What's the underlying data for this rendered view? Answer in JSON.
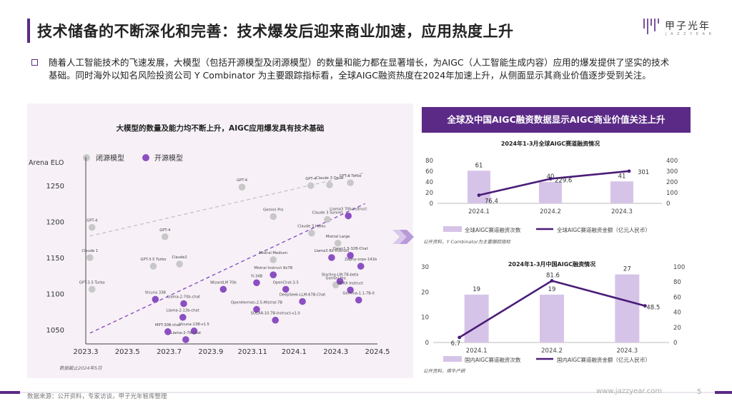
{
  "header": {
    "title": "技术储备的不断深化和完善：技术爆发后迎来商业加速，应用热度上升",
    "logo_text": "甲子光年",
    "logo_sub": "J A Z Z Y E A R"
  },
  "intro_text": "随着人工智能技术的飞速发展，大模型（包括开源模型及闭源模型）的数量和能力都在显著增长，为AIGC（人工智能生成内容）应用的爆发提供了坚实的技术基础。同时海外以知名风险投资公司 Y Combinator 为主要跟踪指标看，全球AIGC融资热度在2024年加速上升，从侧面显示其商业价值逐步受到关注。",
  "colors": {
    "accent": "#5b2a86",
    "open_model": "#8b4fc2",
    "closed_model": "#c8c8c8",
    "bar_fill": "#d6c4e8",
    "line": "#4a1c78"
  },
  "chart_data": [
    {
      "type": "scatter",
      "title": "大模型的数量及能力均不断上升，AIGC应用爆发具有技术基础",
      "ylabel": "Arena ELO",
      "x_ticks": [
        "2023.3",
        "2023.5",
        "2023.7",
        "2023.9",
        "2023.11",
        "2024.1",
        "2024.3",
        "2024.5"
      ],
      "y_ticks": [
        1050,
        1100,
        1150,
        1200,
        1250
      ],
      "xlim": [
        0,
        7
      ],
      "ylim": [
        1030,
        1270
      ],
      "legend": [
        "闭源模型",
        "开源模型"
      ],
      "note": "数据截止2024年5月",
      "series": [
        {
          "name": "闭源模型",
          "points": [
            {
              "label": "GPT-4",
              "x": 0.15,
              "y": 1192
            },
            {
              "label": "Claude 1",
              "x": 0.1,
              "y": 1150
            },
            {
              "label": "GPT-3.5 Turbo",
              "x": 0.15,
              "y": 1106
            },
            {
              "label": "GPT-4",
              "x": 1.9,
              "y": 1179
            },
            {
              "label": "Claude2",
              "x": 2.25,
              "y": 1141
            },
            {
              "label": "GPT-3.5 Turbo",
              "x": 1.62,
              "y": 1138
            },
            {
              "label": "GPT-4",
              "x": 3.75,
              "y": 1248
            },
            {
              "label": "GPT-4",
              "x": 5.4,
              "y": 1250
            },
            {
              "label": "Claude 3 Opus",
              "x": 5.85,
              "y": 1251
            },
            {
              "label": "GPT-4 Turbo",
              "x": 6.35,
              "y": 1254
            },
            {
              "label": "Gemini Pro",
              "x": 4.5,
              "y": 1207
            },
            {
              "label": "Claude 3 Sonnet",
              "x": 5.8,
              "y": 1203
            },
            {
              "label": "Claude 3 Haiku",
              "x": 5.42,
              "y": 1184
            },
            {
              "label": "Mistral Large",
              "x": 6.05,
              "y": 1170
            },
            {
              "label": "Mistral Medium",
              "x": 4.5,
              "y": 1147
            },
            {
              "label": "Gemini Pro",
              "x": 6.0,
              "y": 1112
            }
          ]
        },
        {
          "name": "开源模型",
          "points": [
            {
              "label": "Llama3 70b Instruct",
              "x": 6.3,
              "y": 1208
            },
            {
              "label": "Qwen1.5-32B-Chat",
              "x": 6.35,
              "y": 1153
            },
            {
              "label": "Llama3 8b Instruct",
              "x": 5.9,
              "y": 1150
            },
            {
              "label": "Zephy-orpo-141b",
              "x": 6.6,
              "y": 1138
            },
            {
              "label": "Mistral Instruct 8x7B",
              "x": 4.5,
              "y": 1126
            },
            {
              "label": "Starling-LM-7B-beta",
              "x": 6.1,
              "y": 1117
            },
            {
              "label": "DBRX Instruct",
              "x": 6.35,
              "y": 1105
            },
            {
              "label": "Gemma-1.1-7B-it",
              "x": 6.55,
              "y": 1091
            },
            {
              "label": "Yi-34B",
              "x": 4.1,
              "y": 1115
            },
            {
              "label": "OpenChat-3.5",
              "x": 4.8,
              "y": 1106
            },
            {
              "label": "DeepSeek-LLM-67B-Chat",
              "x": 5.2,
              "y": 1089
            },
            {
              "label": "WizardLM 70b",
              "x": 3.3,
              "y": 1106
            },
            {
              "label": "OpenHermes-2.5-Mistral-7B",
              "x": 4.1,
              "y": 1078
            },
            {
              "label": "SOLAR-10.7B-Instruct-v1.0",
              "x": 4.55,
              "y": 1063
            },
            {
              "label": "Vicuna 33B",
              "x": 1.67,
              "y": 1092
            },
            {
              "label": "Llama-2-70b-chat",
              "x": 2.35,
              "y": 1086
            },
            {
              "label": "Llama-2-13b-chat",
              "x": 2.33,
              "y": 1067
            },
            {
              "label": "Vicuna-13B-v1.5",
              "x": 2.6,
              "y": 1048
            },
            {
              "label": "MPT-30B-chat",
              "x": 1.97,
              "y": 1047
            },
            {
              "label": "Llama-2-7b-chat",
              "x": 2.4,
              "y": 1036
            }
          ]
        }
      ]
    },
    {
      "type": "bar+line",
      "title": "2024年1-3月全球AIGC赛道融资情况",
      "categories": [
        "2024.1",
        "2024.2",
        "2024.3"
      ],
      "bar_series": {
        "name": "全球AIGC赛道融资次数",
        "values": [
          61,
          40,
          41
        ]
      },
      "line_series": {
        "name": "全球AIGC赛道融资金额（亿元人民币）",
        "values": [
          76.4,
          229.6,
          301
        ]
      },
      "y_left": {
        "ticks": [
          0,
          20,
          40,
          60,
          80
        ],
        "range": [
          0,
          80
        ]
      },
      "y_right": {
        "ticks": [
          0,
          100,
          200,
          300,
          400
        ],
        "range": [
          0,
          400
        ]
      },
      "note": "公开资料，Y Combinator为主要跟踪指标"
    },
    {
      "type": "bar+line",
      "title": "2024年1-3月中国AIGC融资情况",
      "categories": [
        "2024.1",
        "2024.2",
        "2024.3"
      ],
      "bar_series": {
        "name": "国内AIGC赛道融资次数",
        "values": [
          19,
          19,
          27
        ]
      },
      "line_series": {
        "name": "国内AIGC赛道融资金额（亿元人民币）",
        "values": [
          6.7,
          81.6,
          48.5
        ]
      },
      "y_left": {
        "ticks": [
          0,
          10,
          20,
          30
        ],
        "range": [
          0,
          30
        ]
      },
      "y_right": {
        "ticks": [
          0,
          20,
          40,
          60,
          80,
          100
        ],
        "range": [
          0,
          100
        ]
      },
      "note": "公开资料，烯牛产研"
    }
  ],
  "right_panel": {
    "header": "全球及中国AIGC融资数据显示AIGC商业价值关注上升"
  },
  "footer": {
    "source": "数据来源：公开资料，专家访谈，甲子光年智库整理",
    "url": "www.jazzyear.com",
    "page": "5"
  }
}
